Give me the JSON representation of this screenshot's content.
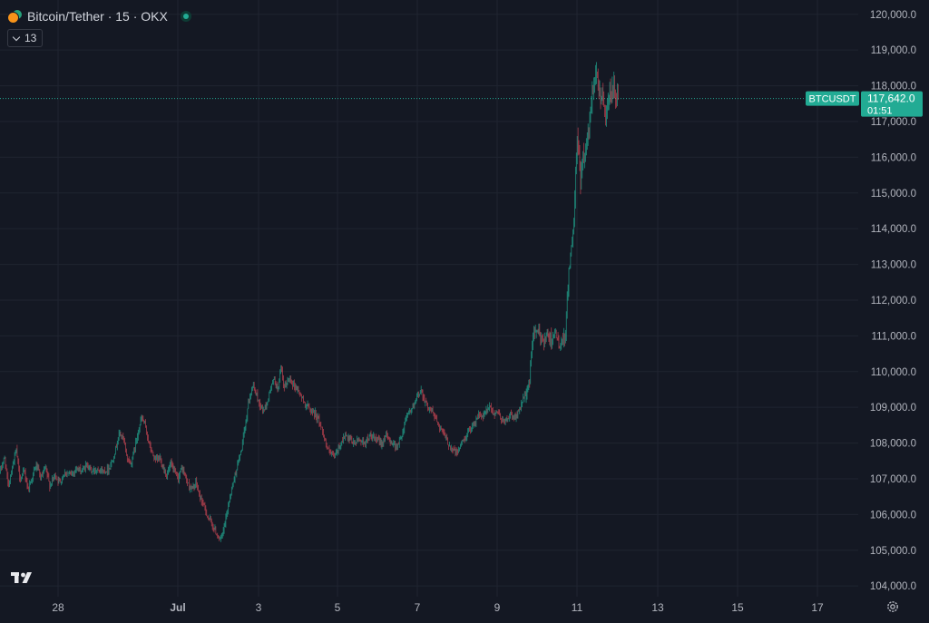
{
  "legend": {
    "title": "Bitcoin/Tether · 15 · OKX",
    "indicator_count": "13"
  },
  "colors": {
    "background": "#141823",
    "grid": "#1f2430",
    "up": "#22ab94",
    "down": "#f7525f",
    "price_line": "#22ab94",
    "axis_text": "#b2b5be"
  },
  "icons": [
    "bitcoin-icon",
    "tether-icon",
    "market-status-icon",
    "chevron-down-icon",
    "tradingview-logo-icon",
    "settings-icon"
  ],
  "chart_data": {
    "type": "candlestick",
    "symbol": "BTCUSDT",
    "interval": "15",
    "exchange": "OKX",
    "ylim": [
      103700,
      120400
    ],
    "y_ticks": [
      "104,000.0",
      "105,000.0",
      "106,000.0",
      "107,000.0",
      "108,000.0",
      "109,000.0",
      "110,000.0",
      "111,000.0",
      "112,000.0",
      "113,000.0",
      "114,000.0",
      "115,000.0",
      "116,000.0",
      "117,000.0",
      "118,000.0",
      "119,000.0",
      "120,000.0"
    ],
    "x_ticks": [
      "28",
      "Jul",
      "3",
      "5",
      "7",
      "9",
      "11",
      "13",
      "15",
      "17"
    ],
    "last_price_label": "117,642.0",
    "countdown": "01:51",
    "last_price": 117642,
    "price_path": [
      [
        0,
        107200
      ],
      [
        5,
        107600
      ],
      [
        9,
        106800
      ],
      [
        14,
        107400
      ],
      [
        18,
        107800
      ],
      [
        22,
        107000
      ],
      [
        27,
        107200
      ],
      [
        31,
        106700
      ],
      [
        36,
        107100
      ],
      [
        40,
        107400
      ],
      [
        45,
        107000
      ],
      [
        50,
        107300
      ],
      [
        55,
        106800
      ],
      [
        60,
        107100
      ],
      [
        66,
        106900
      ],
      [
        72,
        107200
      ],
      [
        78,
        107100
      ],
      [
        84,
        107300
      ],
      [
        90,
        107200
      ],
      [
        96,
        107400
      ],
      [
        102,
        107200
      ],
      [
        108,
        107300
      ],
      [
        114,
        107200
      ],
      [
        120,
        107300
      ],
      [
        124,
        107500
      ],
      [
        128,
        107900
      ],
      [
        132,
        108300
      ],
      [
        136,
        108100
      ],
      [
        140,
        107600
      ],
      [
        144,
        107400
      ],
      [
        148,
        107800
      ],
      [
        152,
        108300
      ],
      [
        156,
        108700
      ],
      [
        160,
        108500
      ],
      [
        164,
        108000
      ],
      [
        168,
        107700
      ],
      [
        172,
        107500
      ],
      [
        176,
        107600
      ],
      [
        180,
        107300
      ],
      [
        184,
        107100
      ],
      [
        188,
        107400
      ],
      [
        192,
        107200
      ],
      [
        196,
        107000
      ],
      [
        200,
        107300
      ],
      [
        204,
        107100
      ],
      [
        208,
        106800
      ],
      [
        212,
        106700
      ],
      [
        216,
        106900
      ],
      [
        220,
        106500
      ],
      [
        224,
        106300
      ],
      [
        228,
        106000
      ],
      [
        232,
        105800
      ],
      [
        236,
        105600
      ],
      [
        240,
        105400
      ],
      [
        243,
        105300
      ],
      [
        246,
        105500
      ],
      [
        249,
        105900
      ],
      [
        252,
        106300
      ],
      [
        255,
        106700
      ],
      [
        258,
        107000
      ],
      [
        262,
        107400
      ],
      [
        266,
        107800
      ],
      [
        270,
        108400
      ],
      [
        274,
        109200
      ],
      [
        278,
        109600
      ],
      [
        282,
        109400
      ],
      [
        286,
        109100
      ],
      [
        290,
        108900
      ],
      [
        294,
        109100
      ],
      [
        298,
        109500
      ],
      [
        302,
        109800
      ],
      [
        306,
        109500
      ],
      [
        310,
        110100
      ],
      [
        313,
        109500
      ],
      [
        316,
        109700
      ],
      [
        320,
        109800
      ],
      [
        324,
        109600
      ],
      [
        328,
        109500
      ],
      [
        332,
        109300
      ],
      [
        336,
        109100
      ],
      [
        340,
        109000
      ],
      [
        344,
        108900
      ],
      [
        348,
        108800
      ],
      [
        352,
        108600
      ],
      [
        356,
        108300
      ],
      [
        360,
        107900
      ],
      [
        364,
        107700
      ],
      [
        368,
        107600
      ],
      [
        372,
        107800
      ],
      [
        376,
        108000
      ],
      [
        380,
        108200
      ],
      [
        384,
        108100
      ],
      [
        390,
        108000
      ],
      [
        396,
        108100
      ],
      [
        402,
        108000
      ],
      [
        408,
        108200
      ],
      [
        414,
        108100
      ],
      [
        420,
        108000
      ],
      [
        426,
        108200
      ],
      [
        432,
        108000
      ],
      [
        438,
        107900
      ],
      [
        444,
        108300
      ],
      [
        448,
        108800
      ],
      [
        452,
        108900
      ],
      [
        456,
        109000
      ],
      [
        460,
        109300
      ],
      [
        464,
        109500
      ],
      [
        468,
        109200
      ],
      [
        472,
        109000
      ],
      [
        476,
        108900
      ],
      [
        480,
        108700
      ],
      [
        484,
        108500
      ],
      [
        488,
        108300
      ],
      [
        492,
        108100
      ],
      [
        496,
        107900
      ],
      [
        500,
        107800
      ],
      [
        504,
        107700
      ],
      [
        508,
        108000
      ],
      [
        512,
        108100
      ],
      [
        516,
        108300
      ],
      [
        520,
        108500
      ],
      [
        524,
        108600
      ],
      [
        528,
        108800
      ],
      [
        532,
        108700
      ],
      [
        536,
        108900
      ],
      [
        540,
        109000
      ],
      [
        544,
        108800
      ],
      [
        548,
        108900
      ],
      [
        552,
        108700
      ],
      [
        556,
        108600
      ],
      [
        560,
        108700
      ],
      [
        564,
        108800
      ],
      [
        568,
        108700
      ],
      [
        572,
        108900
      ],
      [
        576,
        109200
      ],
      [
        580,
        109400
      ],
      [
        584,
        109800
      ],
      [
        586,
        110500
      ],
      [
        588,
        111200
      ],
      [
        591,
        111100
      ],
      [
        595,
        111000
      ],
      [
        599,
        110900
      ],
      [
        603,
        111000
      ],
      [
        607,
        110900
      ],
      [
        611,
        111100
      ],
      [
        615,
        110800
      ],
      [
        619,
        110700
      ],
      [
        622,
        110900
      ],
      [
        624,
        111300
      ],
      [
        626,
        112400
      ],
      [
        628,
        113100
      ],
      [
        630,
        113500
      ],
      [
        632,
        113700
      ],
      [
        634,
        115300
      ],
      [
        636,
        116500
      ],
      [
        638,
        116000
      ],
      [
        640,
        115400
      ],
      [
        642,
        115900
      ],
      [
        644,
        116100
      ],
      [
        646,
        116300
      ],
      [
        648,
        116600
      ],
      [
        650,
        117000
      ],
      [
        652,
        117700
      ],
      [
        654,
        118100
      ],
      [
        656,
        118300
      ],
      [
        658,
        118400
      ],
      [
        660,
        118000
      ],
      [
        662,
        117600
      ],
      [
        664,
        117900
      ],
      [
        666,
        117400
      ],
      [
        668,
        117200
      ],
      [
        670,
        117600
      ],
      [
        672,
        117800
      ],
      [
        674,
        117600
      ],
      [
        676,
        118000
      ],
      [
        678,
        117800
      ],
      [
        680,
        117600
      ],
      [
        682,
        117642
      ]
    ]
  }
}
